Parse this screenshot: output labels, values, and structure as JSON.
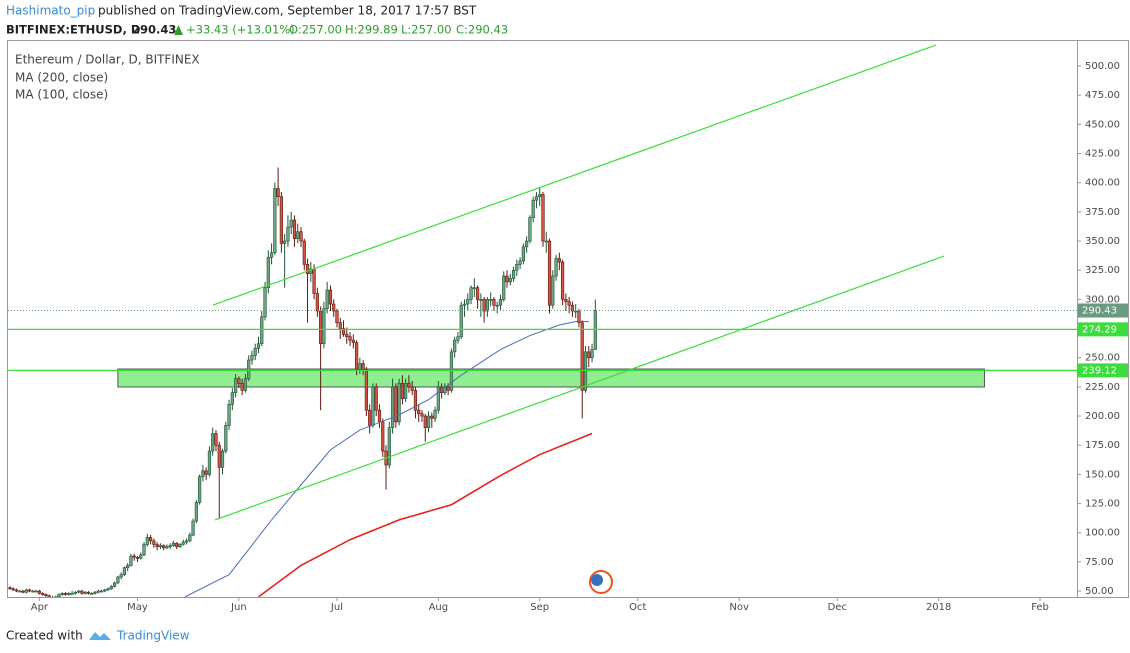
{
  "header": {
    "author": "Hashimato_pip",
    "published": "published on TradingView.com, September 18, 2017 17:57 BST",
    "symbol": "BITFINEX:ETHUSD, D",
    "last": "290.43",
    "change": "+33.43 (+13.01%)",
    "ohlc": [
      "O:257.00",
      "H:299.89",
      "L:257.00",
      "C:290.43"
    ]
  },
  "chart_data": {
    "type": "candlestick",
    "title": "Ethereum / Dollar, D, BITFINEX",
    "up_color": "#6ba583",
    "down_color": "#d75442",
    "up_border": "#225437",
    "down_border": "#5b1a13",
    "xlim": [
      -0.6,
      326.3
    ],
    "ylim": [
      44.9,
      522.3
    ],
    "grid": false,
    "xticks": [
      {
        "value": 9,
        "label": "Apr"
      },
      {
        "value": 39,
        "label": "May"
      },
      {
        "value": 70,
        "label": "Jun"
      },
      {
        "value": 100,
        "label": "Jul"
      },
      {
        "value": 131,
        "label": "Aug"
      },
      {
        "value": 162,
        "label": "Sep"
      },
      {
        "value": 192,
        "label": "Oct"
      },
      {
        "value": 223,
        "label": "Nov"
      },
      {
        "value": 253,
        "label": "Dec"
      },
      {
        "value": 284,
        "label": "2018"
      },
      {
        "value": 315,
        "label": "Feb"
      }
    ],
    "yticks": [
      {
        "value": 50,
        "label": "50.00"
      },
      {
        "value": 75,
        "label": "75.00"
      },
      {
        "value": 100,
        "label": "100.00"
      },
      {
        "value": 125,
        "label": "125.00"
      },
      {
        "value": 150,
        "label": "150.00"
      },
      {
        "value": 175,
        "label": "175.00"
      },
      {
        "value": 200,
        "label": "200.00"
      },
      {
        "value": 225,
        "label": "225.00"
      },
      {
        "value": 250,
        "label": "250.00"
      },
      {
        "value": 275,
        "label": "275.00"
      },
      {
        "value": 300,
        "label": "300.00"
      },
      {
        "value": 325,
        "label": "325.00"
      },
      {
        "value": 350,
        "label": "350.00"
      },
      {
        "value": 375,
        "label": "375.00"
      },
      {
        "value": 400,
        "label": "400.00"
      },
      {
        "value": 425,
        "label": "425.00"
      },
      {
        "value": 450,
        "label": "450.00"
      },
      {
        "value": 475,
        "label": "475.00"
      },
      {
        "value": 500,
        "label": "500.00"
      }
    ],
    "candles": [
      [
        53,
        54,
        51,
        52
      ],
      [
        52,
        53,
        50,
        51
      ],
      [
        51,
        52,
        49,
        50
      ],
      [
        50,
        51,
        49,
        50
      ],
      [
        50,
        51,
        48,
        49
      ],
      [
        49,
        52,
        48,
        51
      ],
      [
        51,
        52,
        49,
        50
      ],
      [
        50,
        51,
        49,
        50
      ],
      [
        50,
        51,
        49,
        50
      ],
      [
        50,
        51,
        47,
        48
      ],
      [
        48,
        49,
        46,
        47
      ],
      [
        47,
        48,
        45,
        46
      ],
      [
        46,
        47,
        43,
        44
      ],
      [
        44,
        46,
        43,
        44
      ],
      [
        44,
        46,
        43,
        45
      ],
      [
        45,
        48,
        44,
        47
      ],
      [
        47,
        49,
        46,
        48
      ],
      [
        48,
        49,
        46,
        47
      ],
      [
        47,
        49,
        46,
        48
      ],
      [
        48,
        50,
        47,
        48
      ],
      [
        48,
        50,
        47,
        49
      ],
      [
        49,
        51,
        48,
        50
      ],
      [
        50,
        51,
        47,
        48
      ],
      [
        48,
        50,
        47,
        49
      ],
      [
        49,
        50,
        47,
        48
      ],
      [
        48,
        49,
        47,
        48
      ],
      [
        48,
        50,
        47,
        49
      ],
      [
        49,
        51,
        48,
        50
      ],
      [
        50,
        51,
        49,
        50
      ],
      [
        50,
        52,
        49,
        51
      ],
      [
        51,
        53,
        50,
        52
      ],
      [
        52,
        55,
        51,
        54
      ],
      [
        54,
        58,
        53,
        57
      ],
      [
        57,
        63,
        56,
        62
      ],
      [
        62,
        66,
        60,
        64
      ],
      [
        64,
        71,
        63,
        70
      ],
      [
        70,
        74,
        67,
        72
      ],
      [
        72,
        82,
        71,
        80
      ],
      [
        80,
        82,
        76,
        79
      ],
      [
        79,
        80,
        75,
        78
      ],
      [
        78,
        83,
        77,
        81
      ],
      [
        81,
        92,
        80,
        90
      ],
      [
        90,
        99,
        88,
        96
      ],
      [
        96,
        98,
        90,
        93
      ],
      [
        93,
        95,
        87,
        90
      ],
      [
        90,
        92,
        85,
        88
      ],
      [
        88,
        91,
        86,
        89
      ],
      [
        89,
        90,
        85,
        87
      ],
      [
        87,
        90,
        86,
        88
      ],
      [
        88,
        91,
        86,
        89
      ],
      [
        89,
        93,
        88,
        91
      ],
      [
        91,
        92,
        86,
        88
      ],
      [
        88,
        91,
        87,
        90
      ],
      [
        90,
        94,
        89,
        92
      ],
      [
        92,
        95,
        90,
        93
      ],
      [
        93,
        100,
        92,
        98
      ],
      [
        98,
        112,
        97,
        110
      ],
      [
        110,
        128,
        108,
        126
      ],
      [
        126,
        150,
        124,
        148
      ],
      [
        148,
        158,
        144,
        153
      ],
      [
        153,
        156,
        145,
        150
      ],
      [
        150,
        174,
        148,
        170
      ],
      [
        170,
        190,
        166,
        185
      ],
      [
        185,
        188,
        170,
        175
      ],
      [
        175,
        178,
        112,
        156
      ],
      [
        156,
        172,
        150,
        170
      ],
      [
        170,
        195,
        168,
        192
      ],
      [
        192,
        214,
        188,
        210
      ],
      [
        210,
        224,
        205,
        220
      ],
      [
        220,
        236,
        216,
        232
      ],
      [
        232,
        234,
        224,
        228
      ],
      [
        228,
        232,
        218,
        222
      ],
      [
        222,
        236,
        220,
        232
      ],
      [
        232,
        252,
        230,
        248
      ],
      [
        248,
        256,
        244,
        252
      ],
      [
        252,
        262,
        248,
        258
      ],
      [
        258,
        268,
        254,
        262
      ],
      [
        262,
        290,
        260,
        285
      ],
      [
        285,
        315,
        282,
        310
      ],
      [
        310,
        342,
        305,
        336
      ],
      [
        336,
        348,
        330,
        340
      ],
      [
        340,
        400,
        338,
        395
      ],
      [
        395,
        413,
        380,
        388
      ],
      [
        388,
        392,
        340,
        348
      ],
      [
        348,
        356,
        310,
        350
      ],
      [
        350,
        372,
        345,
        362
      ],
      [
        362,
        375,
        356,
        368
      ],
      [
        368,
        372,
        345,
        352
      ],
      [
        352,
        365,
        348,
        358
      ],
      [
        358,
        362,
        345,
        350
      ],
      [
        350,
        352,
        325,
        330
      ],
      [
        330,
        335,
        280,
        322
      ],
      [
        322,
        332,
        315,
        326
      ],
      [
        326,
        330,
        300,
        305
      ],
      [
        305,
        310,
        285,
        290
      ],
      [
        290,
        294,
        205,
        262
      ],
      [
        262,
        298,
        258,
        292
      ],
      [
        292,
        315,
        288,
        308
      ],
      [
        308,
        312,
        290,
        296
      ],
      [
        296,
        300,
        285,
        290
      ],
      [
        290,
        292,
        276,
        280
      ],
      [
        280,
        284,
        266,
        275
      ],
      [
        275,
        282,
        268,
        270
      ],
      [
        270,
        276,
        262,
        268
      ],
      [
        268,
        272,
        260,
        265
      ],
      [
        265,
        270,
        258,
        263
      ],
      [
        263,
        265,
        235,
        240
      ],
      [
        240,
        250,
        236,
        245
      ],
      [
        245,
        248,
        235,
        240
      ],
      [
        240,
        242,
        200,
        205
      ],
      [
        205,
        210,
        185,
        192
      ],
      [
        192,
        228,
        190,
        225
      ],
      [
        225,
        228,
        200,
        205
      ],
      [
        205,
        210,
        190,
        195
      ],
      [
        195,
        198,
        165,
        170
      ],
      [
        170,
        175,
        137,
        158
      ],
      [
        158,
        195,
        155,
        190
      ],
      [
        190,
        232,
        185,
        225
      ],
      [
        225,
        228,
        190,
        195
      ],
      [
        195,
        232,
        192,
        228
      ],
      [
        228,
        235,
        210,
        215
      ],
      [
        215,
        232,
        212,
        228
      ],
      [
        228,
        235,
        220,
        225
      ],
      [
        225,
        230,
        218,
        222
      ],
      [
        222,
        225,
        198,
        205
      ],
      [
        205,
        210,
        195,
        202
      ],
      [
        202,
        205,
        195,
        200
      ],
      [
        200,
        202,
        178,
        190
      ],
      [
        190,
        204,
        186,
        200
      ],
      [
        200,
        203,
        190,
        198
      ],
      [
        198,
        208,
        195,
        205
      ],
      [
        205,
        230,
        202,
        225
      ],
      [
        225,
        228,
        215,
        220
      ],
      [
        220,
        228,
        218,
        225
      ],
      [
        225,
        228,
        218,
        222
      ],
      [
        222,
        258,
        220,
        255
      ],
      [
        255,
        268,
        250,
        265
      ],
      [
        265,
        272,
        262,
        268
      ],
      [
        268,
        298,
        266,
        295
      ],
      [
        295,
        300,
        285,
        296
      ],
      [
        296,
        305,
        290,
        300
      ],
      [
        300,
        312,
        296,
        310
      ],
      [
        310,
        318,
        302,
        310
      ],
      [
        310,
        312,
        292,
        300
      ],
      [
        300,
        305,
        285,
        300
      ],
      [
        300,
        302,
        280,
        290
      ],
      [
        290,
        302,
        285,
        300
      ],
      [
        300,
        306,
        294,
        300
      ],
      [
        300,
        302,
        290,
        295
      ],
      [
        295,
        298,
        288,
        295
      ],
      [
        295,
        304,
        290,
        300
      ],
      [
        300,
        324,
        298,
        320
      ],
      [
        320,
        325,
        310,
        315
      ],
      [
        315,
        322,
        312,
        318
      ],
      [
        318,
        328,
        315,
        325
      ],
      [
        325,
        334,
        320,
        330
      ],
      [
        330,
        336,
        326,
        333
      ],
      [
        333,
        348,
        330,
        345
      ],
      [
        345,
        354,
        340,
        350
      ],
      [
        350,
        372,
        348,
        370
      ],
      [
        370,
        388,
        366,
        385
      ],
      [
        385,
        392,
        378,
        388
      ],
      [
        388,
        396,
        380,
        390
      ],
      [
        390,
        392,
        345,
        350
      ],
      [
        350,
        358,
        340,
        350
      ],
      [
        350,
        352,
        288,
        295
      ],
      [
        295,
        325,
        292,
        320
      ],
      [
        320,
        338,
        316,
        335
      ],
      [
        335,
        340,
        325,
        332
      ],
      [
        332,
        334,
        295,
        300
      ],
      [
        300,
        305,
        290,
        298
      ],
      [
        298,
        302,
        288,
        295
      ],
      [
        295,
        298,
        285,
        290
      ],
      [
        290,
        296,
        284,
        290
      ],
      [
        290,
        292,
        276,
        280
      ],
      [
        280,
        282,
        198,
        222
      ],
      [
        222,
        260,
        220,
        255
      ],
      [
        255,
        260,
        242,
        250
      ],
      [
        250,
        262,
        246,
        257
      ],
      [
        257,
        299.89,
        257,
        290.43
      ]
    ],
    "series": [
      {
        "name": "MA (200, close)",
        "color": "#e8211d",
        "x": [
          76,
          89,
          104,
          119,
          135,
          150,
          162,
          178
        ],
        "values": [
          45,
          72,
          94,
          111,
          124,
          149,
          167,
          185
        ]
      },
      {
        "name": "MA (100, close)",
        "color": "#4a6fb5",
        "x": [
          53.5,
          67,
          80,
          89,
          98,
          107,
          119,
          128,
          138,
          150,
          159,
          168,
          173,
          177
        ],
        "values": [
          45,
          64,
          111,
          141,
          171,
          188,
          201,
          214,
          235,
          257,
          269,
          278,
          281,
          281
        ]
      }
    ],
    "drawing_color": "#3ddc3d",
    "trend_lines": [
      {
        "x": [
          62.1,
          283.2
        ],
        "values": [
          295.1,
          518
        ]
      },
      {
        "x": [
          62.7,
          285.6
        ],
        "values": [
          110.9,
          337.1
        ]
      }
    ],
    "hlines": [
      274.29,
      239.12
    ],
    "zone": {
      "x": [
        33,
        298
      ],
      "values": [
        224.9,
        240.3
      ],
      "color": "#90ee90"
    }
  },
  "footer": {
    "created": "Created with",
    "brand": "TradingView"
  }
}
